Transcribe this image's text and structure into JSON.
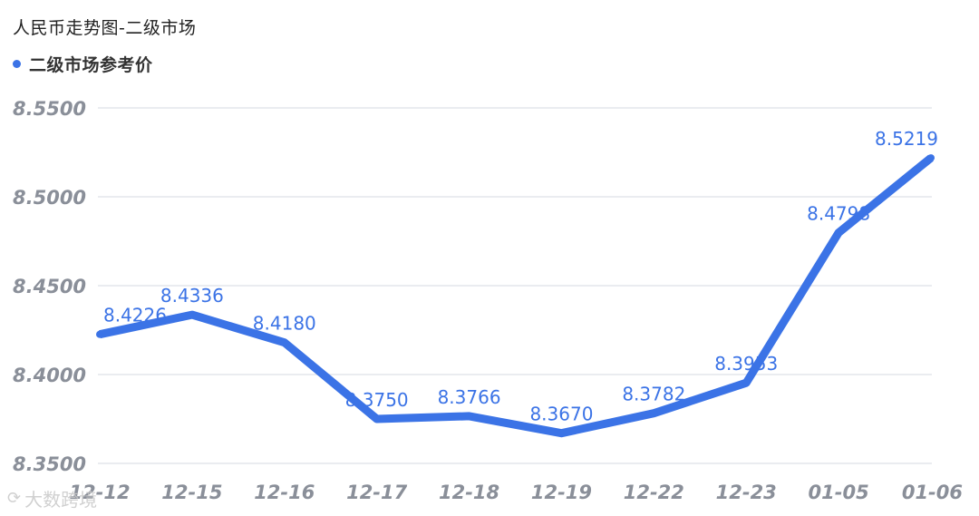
{
  "chart_title": "人民币走势图-二级市场",
  "watermark": "大数跨境",
  "colors": {
    "line": "#3b73e6",
    "grid": "#e3e6ec",
    "axis_text": "#8a8f99",
    "label_text": "#3b73e6"
  },
  "chart_data": {
    "type": "line",
    "title": "人民币走势图-二级市场",
    "xlabel": "",
    "ylabel": "",
    "categories": [
      "12-12",
      "12-15",
      "12-16",
      "12-17",
      "12-18",
      "12-19",
      "12-22",
      "12-23",
      "01-05",
      "01-06"
    ],
    "series": [
      {
        "name": "二级市场参考价",
        "values": [
          8.4226,
          8.4336,
          8.418,
          8.375,
          8.3766,
          8.367,
          8.3782,
          8.3953,
          8.4798,
          8.5219
        ],
        "labels": [
          "8.4226",
          "8.4336",
          "8.4180",
          "8.3750",
          "8.3766",
          "8.3670",
          "8.3782",
          "8.3953",
          "8.4798",
          "8.5219"
        ]
      }
    ],
    "ylim": [
      8.35,
      8.55
    ],
    "yticks": [
      "8.5500",
      "8.5000",
      "8.4500",
      "8.4000",
      "8.3500"
    ],
    "ytick_values": [
      8.55,
      8.5,
      8.45,
      8.4,
      8.35
    ],
    "grid": true,
    "legend_position": "top-left"
  }
}
